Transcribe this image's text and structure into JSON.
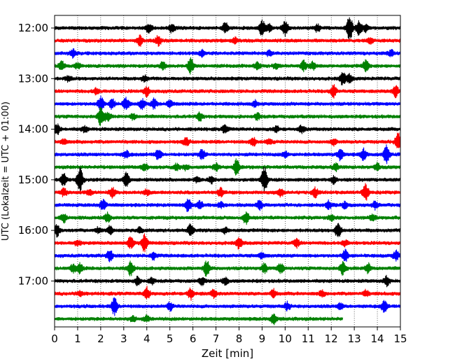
{
  "chart_data": {
    "type": "line",
    "title": "",
    "xlabel": "Zeit  [min]",
    "ylabel": "UTC (Lokalzeit = UTC + 01:00)",
    "xlim": [
      0,
      15
    ],
    "x_ticks": [
      0,
      1,
      2,
      3,
      4,
      5,
      6,
      7,
      8,
      9,
      10,
      11,
      12,
      13,
      14,
      15
    ],
    "y_ticks": [
      "12:00",
      "13:00",
      "14:00",
      "15:00",
      "16:00",
      "17:00"
    ],
    "start_time": "12:00",
    "row_minutes": 15,
    "grid": "vertical dotted",
    "colors": [
      "#000000",
      "#ff0000",
      "#0000ff",
      "#008000"
    ],
    "rows": [
      {
        "time": "12:00",
        "end": 15,
        "events": [
          [
            4.1,
            0.5
          ],
          [
            5.1,
            0.45
          ],
          [
            7.4,
            0.6
          ],
          [
            9.0,
            0.85
          ],
          [
            9.3,
            0.4
          ],
          [
            10.0,
            0.8
          ],
          [
            11.4,
            0.4
          ],
          [
            12.8,
            1.4
          ],
          [
            13.2,
            0.7
          ],
          [
            13.5,
            0.4
          ]
        ]
      },
      {
        "time": "12:15",
        "end": 15,
        "events": [
          [
            3.7,
            0.5
          ],
          [
            4.5,
            0.5
          ],
          [
            7.8,
            0.3
          ],
          [
            13.7,
            0.3
          ]
        ]
      },
      {
        "time": "12:30",
        "end": 15,
        "events": [
          [
            0.8,
            0.4
          ],
          [
            6.4,
            0.3
          ],
          [
            9.3,
            0.3
          ],
          [
            14.6,
            0.3
          ]
        ]
      },
      {
        "time": "12:45",
        "end": 15,
        "events": [
          [
            0.3,
            0.5
          ],
          [
            1.0,
            0.3
          ],
          [
            4.7,
            0.4
          ],
          [
            5.9,
            0.8
          ],
          [
            8.8,
            0.4
          ],
          [
            9.6,
            0.3
          ],
          [
            10.8,
            0.5
          ],
          [
            11.2,
            0.4
          ],
          [
            13.5,
            0.6
          ]
        ]
      },
      {
        "time": "13:00",
        "end": 15,
        "events": [
          [
            0.6,
            0.3
          ],
          [
            3.9,
            0.3
          ],
          [
            12.5,
            0.7
          ],
          [
            12.8,
            0.4
          ]
        ]
      },
      {
        "time": "13:15",
        "end": 15,
        "events": [
          [
            1.8,
            0.3
          ],
          [
            4.0,
            0.5
          ],
          [
            12.1,
            0.7
          ],
          [
            14.8,
            0.6
          ]
        ]
      },
      {
        "time": "13:30",
        "end": 15,
        "events": [
          [
            2.0,
            0.8
          ],
          [
            2.5,
            0.5
          ],
          [
            3.1,
            0.7
          ],
          [
            3.8,
            0.5
          ],
          [
            4.3,
            0.5
          ],
          [
            5.0,
            0.4
          ],
          [
            8.7,
            0.3
          ]
        ]
      },
      {
        "time": "13:45",
        "end": 15,
        "events": [
          [
            2.0,
            0.9
          ],
          [
            2.3,
            0.5
          ],
          [
            3.4,
            0.3
          ],
          [
            6.3,
            0.4
          ],
          [
            8.8,
            0.3
          ]
        ]
      },
      {
        "time": "14:00",
        "end": 15,
        "events": [
          [
            0.1,
            0.6
          ],
          [
            1.3,
            0.3
          ],
          [
            7.4,
            0.4
          ],
          [
            9.6,
            0.3
          ],
          [
            10.7,
            0.4
          ]
        ]
      },
      {
        "time": "14:15",
        "end": 15,
        "events": [
          [
            0.4,
            0.3
          ],
          [
            5.7,
            0.4
          ],
          [
            8.6,
            0.5
          ],
          [
            9.3,
            0.3
          ],
          [
            12.1,
            0.3
          ],
          [
            14.9,
            1.0
          ]
        ]
      },
      {
        "time": "14:30",
        "end": 15,
        "events": [
          [
            3.1,
            0.4
          ],
          [
            4.5,
            0.6
          ],
          [
            6.4,
            0.5
          ],
          [
            10.0,
            0.3
          ],
          [
            12.4,
            0.6
          ],
          [
            13.4,
            0.6
          ],
          [
            14.4,
            0.9
          ]
        ]
      },
      {
        "time": "14:45",
        "end": 15,
        "events": [
          [
            3.9,
            0.4
          ],
          [
            5.3,
            0.3
          ],
          [
            5.7,
            0.3
          ],
          [
            7.0,
            0.4
          ],
          [
            7.9,
            0.9
          ],
          [
            12.2,
            0.4
          ],
          [
            14.0,
            0.4
          ]
        ]
      },
      {
        "time": "15:00",
        "end": 15,
        "events": [
          [
            0.4,
            0.7
          ],
          [
            1.1,
            1.5
          ],
          [
            3.1,
            0.8
          ],
          [
            6.2,
            0.3
          ],
          [
            6.8,
            0.4
          ],
          [
            9.1,
            1.4
          ],
          [
            12.1,
            0.4
          ]
        ]
      },
      {
        "time": "15:15",
        "end": 15,
        "events": [
          [
            0.4,
            0.4
          ],
          [
            1.5,
            0.3
          ],
          [
            2.5,
            0.5
          ],
          [
            4.0,
            0.3
          ],
          [
            7.2,
            0.4
          ],
          [
            9.8,
            0.4
          ],
          [
            11.3,
            0.5
          ],
          [
            13.5,
            0.9
          ]
        ]
      },
      {
        "time": "15:30",
        "end": 15,
        "events": [
          [
            2.1,
            0.6
          ],
          [
            5.8,
            0.8
          ],
          [
            6.3,
            0.4
          ],
          [
            7.2,
            0.3
          ],
          [
            8.9,
            0.5
          ],
          [
            11.9,
            0.4
          ],
          [
            12.6,
            0.3
          ],
          [
            13.9,
            0.4
          ]
        ]
      },
      {
        "time": "15:45",
        "end": 15,
        "events": [
          [
            0.4,
            0.5
          ],
          [
            2.3,
            0.5
          ],
          [
            8.3,
            0.6
          ],
          [
            12.0,
            0.3
          ],
          [
            13.8,
            0.4
          ]
        ]
      },
      {
        "time": "16:00",
        "end": 15,
        "events": [
          [
            0.1,
            0.6
          ],
          [
            1.9,
            0.3
          ],
          [
            2.4,
            0.4
          ],
          [
            3.7,
            0.3
          ],
          [
            5.9,
            0.7
          ],
          [
            7.4,
            0.3
          ],
          [
            12.3,
            0.9
          ]
        ]
      },
      {
        "time": "16:15",
        "end": 15,
        "events": [
          [
            1.0,
            0.3
          ],
          [
            3.3,
            0.6
          ],
          [
            3.9,
            1.0
          ],
          [
            8.0,
            0.6
          ],
          [
            10.5,
            0.4
          ],
          [
            12.6,
            0.3
          ]
        ]
      },
      {
        "time": "16:30",
        "end": 15,
        "events": [
          [
            2.4,
            0.6
          ],
          [
            4.3,
            0.4
          ],
          [
            9.0,
            0.3
          ],
          [
            12.6,
            0.6
          ],
          [
            14.8,
            0.5
          ]
        ]
      },
      {
        "time": "16:45",
        "end": 15,
        "events": [
          [
            0.8,
            0.4
          ],
          [
            1.1,
            0.5
          ],
          [
            3.3,
            0.8
          ],
          [
            6.6,
            0.9
          ],
          [
            9.1,
            0.5
          ],
          [
            9.8,
            0.6
          ],
          [
            12.5,
            0.6
          ],
          [
            13.6,
            0.5
          ]
        ]
      },
      {
        "time": "17:00",
        "end": 15,
        "events": [
          [
            3.6,
            0.4
          ],
          [
            4.2,
            0.3
          ],
          [
            6.4,
            0.4
          ],
          [
            7.4,
            0.4
          ],
          [
            14.4,
            0.5
          ]
        ]
      },
      {
        "time": "17:15",
        "end": 15,
        "events": [
          [
            1.1,
            0.3
          ],
          [
            4.0,
            0.7
          ],
          [
            5.9,
            0.6
          ],
          [
            6.9,
            0.4
          ],
          [
            9.5,
            0.4
          ],
          [
            11.6,
            0.3
          ],
          [
            13.5,
            0.3
          ]
        ]
      },
      {
        "time": "17:30",
        "end": 15,
        "events": [
          [
            2.6,
            0.9
          ],
          [
            5.0,
            0.4
          ],
          [
            10.1,
            0.4
          ],
          [
            12.4,
            0.3
          ],
          [
            14.3,
            0.6
          ]
        ]
      },
      {
        "time": "17:45",
        "end": 12.5,
        "events": [
          [
            3.4,
            0.3
          ],
          [
            4.0,
            0.3
          ],
          [
            9.5,
            0.5
          ]
        ]
      }
    ]
  }
}
